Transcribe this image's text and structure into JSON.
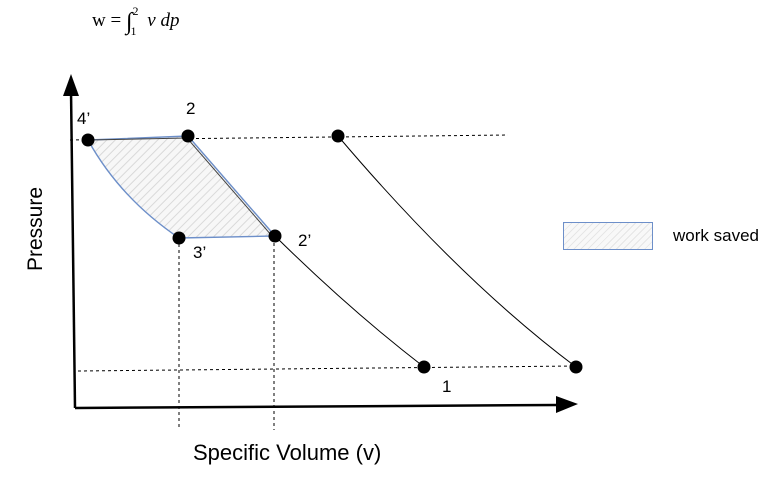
{
  "formula": {
    "lhs": "w = ",
    "integral": "∫",
    "upper": "2",
    "lower": "1",
    "body": "v dp"
  },
  "axes": {
    "x_label": "Specific Volume (v)",
    "y_label": "Pressure"
  },
  "points": {
    "p1": "1",
    "p2": "2",
    "p2_prime": "2’",
    "p3_prime": "3’",
    "p4_prime": "4’"
  },
  "legend": {
    "label": "work saved",
    "swatch_color": "#6d8fc9"
  },
  "colors": {
    "line": "#000000",
    "cycle_edge": "#6d8fc9",
    "hatch": "#d9d9d9"
  }
}
